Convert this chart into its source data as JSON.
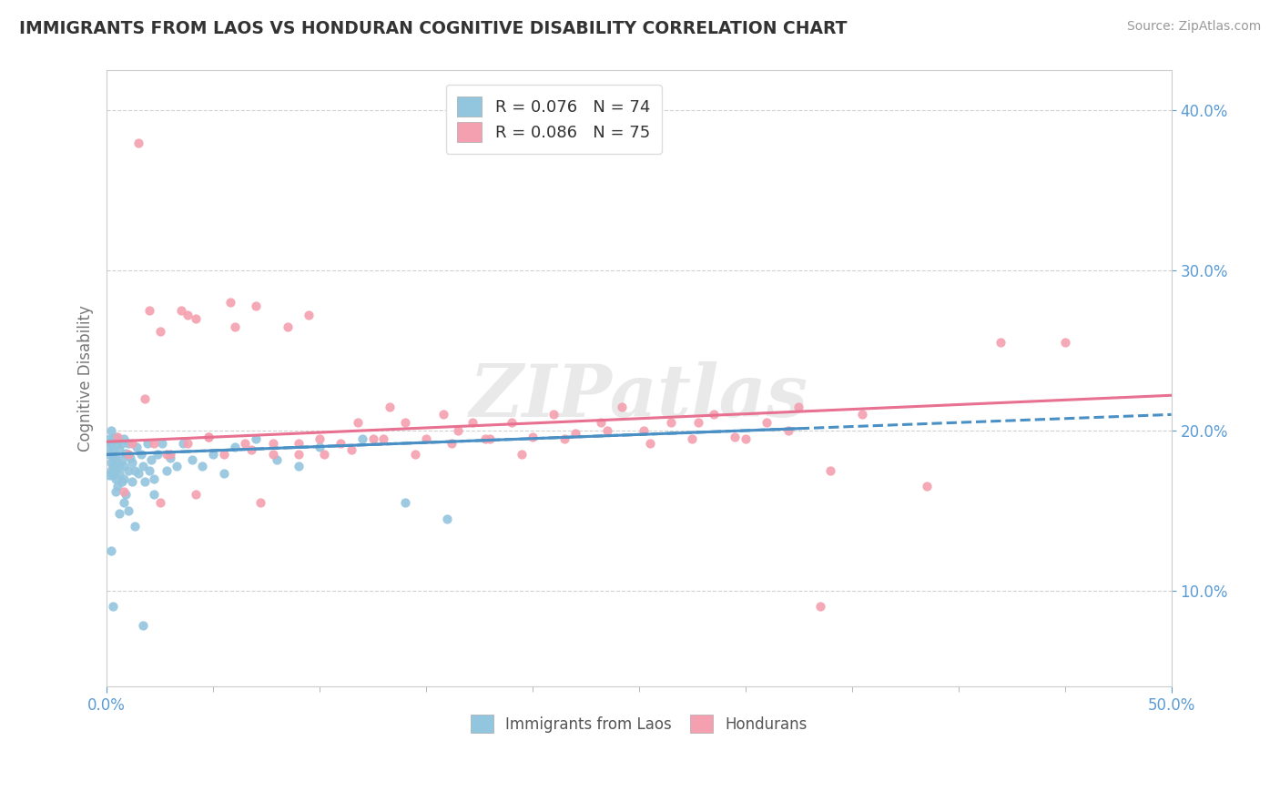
{
  "title": "IMMIGRANTS FROM LAOS VS HONDURAN COGNITIVE DISABILITY CORRELATION CHART",
  "source": "Source: ZipAtlas.com",
  "ylabel": "Cognitive Disability",
  "legend_label1": "Immigrants from Laos",
  "legend_label2": "Hondurans",
  "R1": 0.076,
  "N1": 74,
  "R2": 0.086,
  "N2": 75,
  "color1": "#92C5DE",
  "color2": "#F4A0B0",
  "trendline1_color": "#4A90C4",
  "trendline2_color": "#E87090",
  "watermark": "ZIPatlas",
  "xlim": [
    0.0,
    0.5
  ],
  "ylim": [
    0.04,
    0.425
  ],
  "yticks": [
    0.1,
    0.2,
    0.3,
    0.4
  ],
  "trend1_x0": 0.0,
  "trend1_y0": 0.185,
  "trend1_x1": 0.5,
  "trend1_y1": 0.21,
  "trend2_x0": 0.0,
  "trend2_y0": 0.193,
  "trend2_x1": 0.5,
  "trend2_y1": 0.222,
  "laos_x": [
    0.001,
    0.001,
    0.001,
    0.002,
    0.002,
    0.002,
    0.002,
    0.003,
    0.003,
    0.003,
    0.003,
    0.003,
    0.004,
    0.004,
    0.004,
    0.004,
    0.005,
    0.005,
    0.005,
    0.005,
    0.006,
    0.006,
    0.006,
    0.007,
    0.007,
    0.007,
    0.008,
    0.008,
    0.008,
    0.009,
    0.009,
    0.01,
    0.01,
    0.011,
    0.012,
    0.012,
    0.013,
    0.014,
    0.015,
    0.016,
    0.017,
    0.018,
    0.019,
    0.02,
    0.021,
    0.022,
    0.024,
    0.026,
    0.028,
    0.03,
    0.033,
    0.036,
    0.04,
    0.045,
    0.05,
    0.055,
    0.06,
    0.07,
    0.08,
    0.09,
    0.1,
    0.12,
    0.14,
    0.16,
    0.01,
    0.013,
    0.017,
    0.022,
    0.008,
    0.006,
    0.004,
    0.003,
    0.002,
    0.001
  ],
  "laos_y": [
    0.19,
    0.195,
    0.185,
    0.2,
    0.18,
    0.175,
    0.192,
    0.188,
    0.178,
    0.195,
    0.172,
    0.183,
    0.196,
    0.17,
    0.185,
    0.175,
    0.192,
    0.165,
    0.18,
    0.195,
    0.173,
    0.188,
    0.178,
    0.192,
    0.168,
    0.182,
    0.195,
    0.17,
    0.178,
    0.186,
    0.16,
    0.192,
    0.175,
    0.183,
    0.168,
    0.18,
    0.175,
    0.19,
    0.173,
    0.185,
    0.178,
    0.168,
    0.192,
    0.175,
    0.182,
    0.17,
    0.185,
    0.192,
    0.175,
    0.183,
    0.178,
    0.192,
    0.182,
    0.178,
    0.185,
    0.173,
    0.19,
    0.195,
    0.182,
    0.178,
    0.19,
    0.195,
    0.155,
    0.145,
    0.15,
    0.14,
    0.078,
    0.16,
    0.155,
    0.148,
    0.162,
    0.09,
    0.125,
    0.172
  ],
  "honduran_x": [
    0.005,
    0.01,
    0.015,
    0.018,
    0.022,
    0.025,
    0.03,
    0.035,
    0.038,
    0.042,
    0.048,
    0.055,
    0.06,
    0.065,
    0.07,
    0.078,
    0.085,
    0.09,
    0.095,
    0.102,
    0.11,
    0.118,
    0.125,
    0.133,
    0.14,
    0.15,
    0.158,
    0.165,
    0.172,
    0.18,
    0.19,
    0.2,
    0.21,
    0.22,
    0.232,
    0.242,
    0.252,
    0.265,
    0.275,
    0.285,
    0.295,
    0.31,
    0.325,
    0.34,
    0.012,
    0.02,
    0.028,
    0.038,
    0.048,
    0.058,
    0.068,
    0.078,
    0.09,
    0.1,
    0.115,
    0.13,
    0.145,
    0.162,
    0.178,
    0.195,
    0.215,
    0.235,
    0.255,
    0.278,
    0.3,
    0.32,
    0.355,
    0.385,
    0.42,
    0.45,
    0.025,
    0.042,
    0.072,
    0.008,
    0.335
  ],
  "honduran_y": [
    0.196,
    0.185,
    0.38,
    0.22,
    0.192,
    0.262,
    0.185,
    0.275,
    0.192,
    0.27,
    0.196,
    0.185,
    0.265,
    0.192,
    0.278,
    0.185,
    0.265,
    0.192,
    0.272,
    0.185,
    0.192,
    0.205,
    0.195,
    0.215,
    0.205,
    0.195,
    0.21,
    0.2,
    0.205,
    0.195,
    0.205,
    0.196,
    0.21,
    0.198,
    0.205,
    0.215,
    0.2,
    0.205,
    0.195,
    0.21,
    0.196,
    0.205,
    0.215,
    0.175,
    0.192,
    0.275,
    0.185,
    0.272,
    0.196,
    0.28,
    0.188,
    0.192,
    0.185,
    0.195,
    0.188,
    0.195,
    0.185,
    0.192,
    0.195,
    0.185,
    0.195,
    0.2,
    0.192,
    0.205,
    0.195,
    0.2,
    0.21,
    0.165,
    0.255,
    0.255,
    0.155,
    0.16,
    0.155,
    0.162,
    0.09
  ]
}
